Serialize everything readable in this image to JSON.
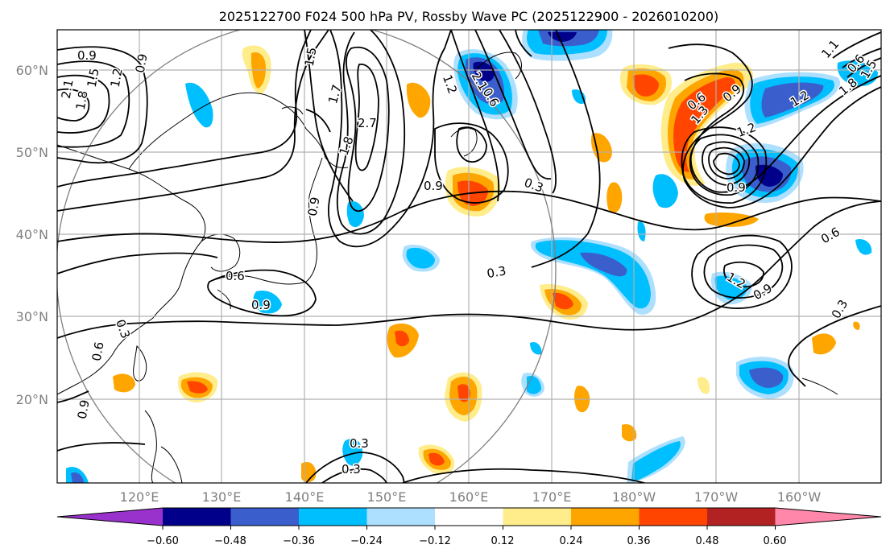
{
  "title": "2025122700 F024 500 hPa PV, Rossby Wave PC (2025122900 - 2026010200)",
  "lat_labels": [
    "60°N",
    "50°N",
    "40°N",
    "30°N",
    "20°N"
  ],
  "lon_labels": [
    "120°E",
    "130°E",
    "140°E",
    "150°E",
    "160°E",
    "170°E",
    "180°W",
    "170°W",
    "160°W"
  ],
  "colorbar": {
    "ticks": [
      "−0.60",
      "−0.48",
      "−0.36",
      "−0.24",
      "−0.12",
      "0.12",
      "0.24",
      "0.36",
      "0.48",
      "0.60"
    ],
    "colors": [
      "#9932CC",
      "#00008B",
      "#3A5FCD",
      "#00BFFF",
      "#ADDFFF",
      "#FFFFFF",
      "#FFEC8B",
      "#FFA500",
      "#FF4500",
      "#B22222",
      "#FF88AA"
    ]
  },
  "contour_labels": [
    "0.9",
    "1.2",
    "2.1",
    "1.8",
    "1.5",
    "0.9",
    "1.5",
    "1.7",
    "2.7",
    "1.8",
    "2.1",
    "1.2",
    "0.6",
    "0.9",
    "0.9",
    "0.3",
    "0.6",
    "0.9",
    "1.3",
    "1.2",
    "0.9",
    "0.6",
    "0.9",
    "1.2",
    "0.9",
    "0.6",
    "0.3",
    "0.3",
    "0.6",
    "0.9",
    "0.3",
    "0.3",
    "0.3",
    "0.6",
    "1.5",
    "1.2",
    "1.8",
    "1.1"
  ]
}
